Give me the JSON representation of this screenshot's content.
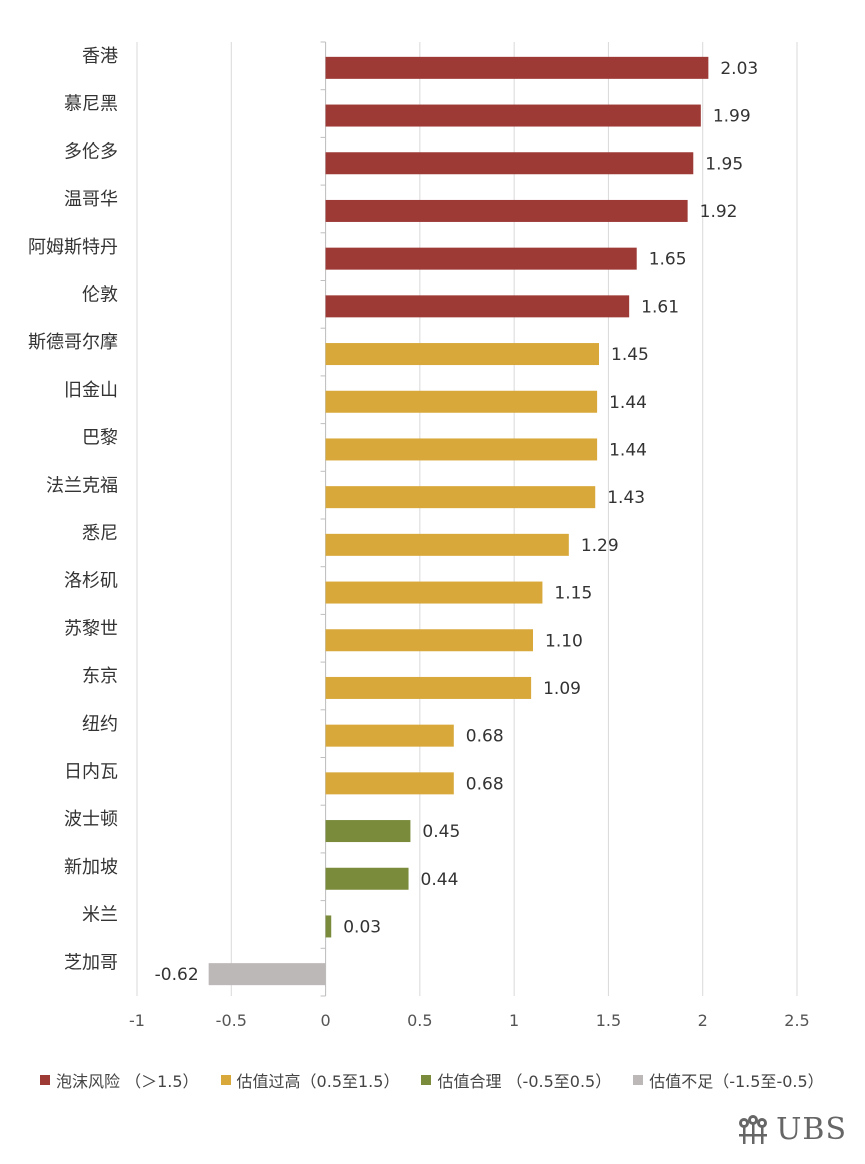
{
  "chart_data": {
    "type": "bar",
    "orientation": "horizontal",
    "categories": [
      "香港",
      "慕尼黑",
      "多伦多",
      "温哥华",
      "阿姆斯特丹",
      "伦敦",
      "斯德哥尔摩",
      "旧金山",
      "巴黎",
      "法兰克福",
      "悉尼",
      "洛杉矶",
      "苏黎世",
      "东京",
      "纽约",
      "日内瓦",
      "波士顿",
      "新加坡",
      "米兰",
      "芝加哥"
    ],
    "values": [
      2.03,
      1.99,
      1.95,
      1.92,
      1.65,
      1.61,
      1.45,
      1.44,
      1.44,
      1.43,
      1.29,
      1.15,
      1.1,
      1.09,
      0.68,
      0.68,
      0.45,
      0.44,
      0.03,
      -0.62
    ],
    "value_labels": [
      "2.03",
      "1.99",
      "1.95",
      "1.92",
      "1.65",
      "1.61",
      "1.45",
      "1.44",
      "1.44",
      "1.43",
      "1.29",
      "1.15",
      "1.10",
      "1.09",
      "0.68",
      "0.68",
      "0.45",
      "0.44",
      "0.03",
      "-0.62"
    ],
    "bar_group": [
      0,
      0,
      0,
      0,
      0,
      0,
      1,
      1,
      1,
      1,
      1,
      1,
      1,
      1,
      1,
      1,
      2,
      2,
      2,
      3
    ],
    "xlim": [
      -1,
      2.5
    ],
    "x_ticks": [
      -1,
      -0.5,
      0,
      0.5,
      1,
      1.5,
      2,
      2.5
    ],
    "x_tick_labels": [
      "-1",
      "-0.5",
      "0",
      "0.5",
      "1",
      "1.5",
      "2",
      "2.5"
    ],
    "grid": true,
    "legend_position": "bottom",
    "legend": [
      {
        "label": "泡沫风险 （＞1.5）",
        "color": "#9e3a36"
      },
      {
        "label": "估值过高（0.5至1.5）",
        "color": "#d8a93a"
      },
      {
        "label": "估值合理 （-0.5至0.5）",
        "color": "#7a8c3c"
      },
      {
        "label": "估值不足（-1.5至-0.5）",
        "color": "#bdb8b8"
      }
    ]
  },
  "logo": {
    "text": "UBS",
    "icon": "keys-icon"
  }
}
